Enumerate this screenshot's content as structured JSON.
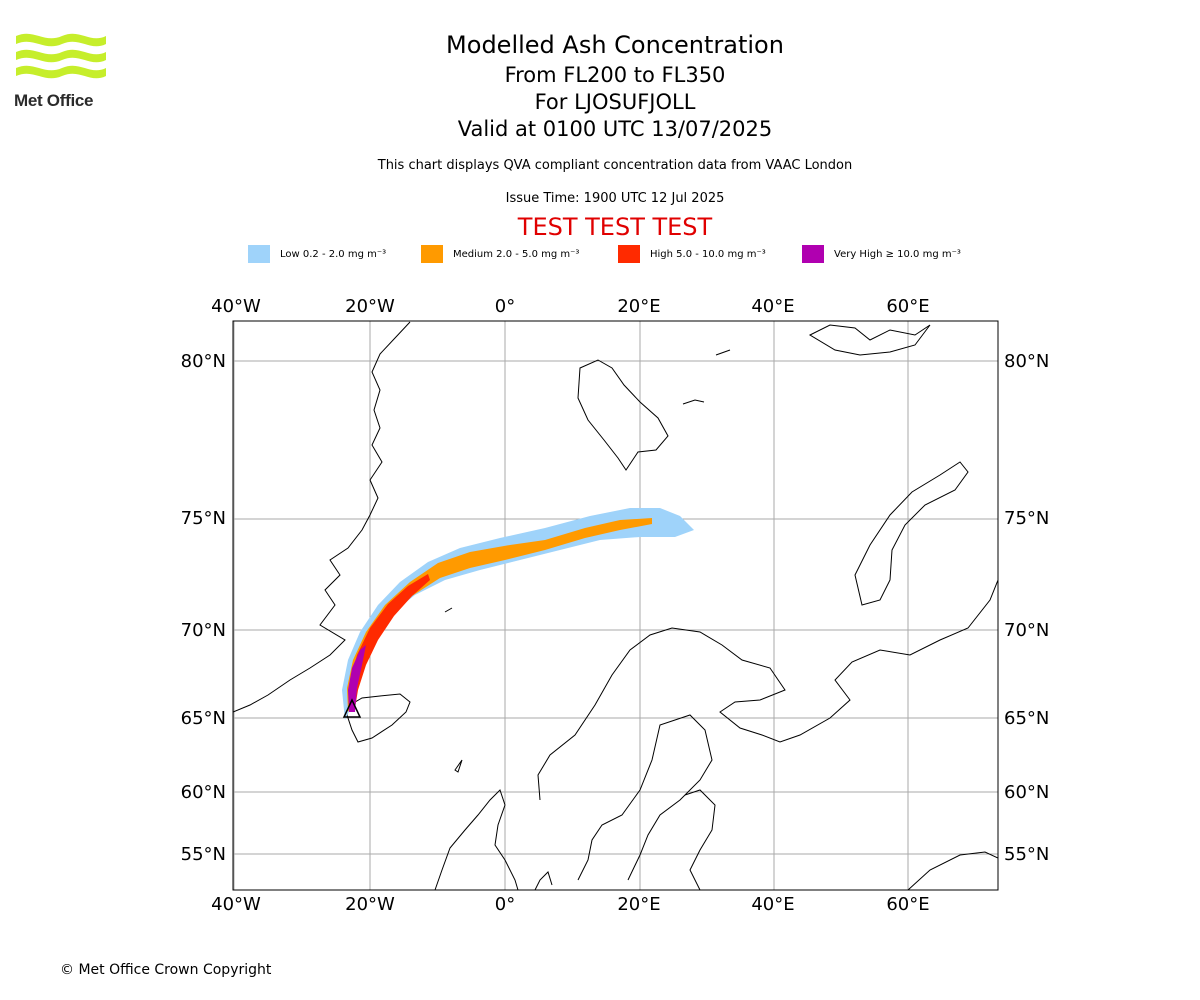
{
  "header": {
    "logo_text": "Met Office",
    "title": "Modelled Ash Concentration",
    "flight_levels": "From FL200 to FL350",
    "volcano": "For LJOSUFJOLL",
    "valid_time": "Valid at 0100 UTC 13/07/2025",
    "description": "This chart displays QVA compliant concentration data from VAAC London",
    "issue_time": "Issue Time: 1900 UTC 12 Jul 2025",
    "test_banner": "TEST TEST TEST"
  },
  "legend": [
    {
      "label": "Low 0.2 - 2.0 mg m⁻³",
      "color": "#9fd3fa"
    },
    {
      "label": "Medium 2.0 - 5.0 mg m⁻³",
      "color": "#ff9a00"
    },
    {
      "label": "High 5.0 - 10.0 mg m⁻³",
      "color": "#ff2a00"
    },
    {
      "label": "Very High ≥ 10.0 mg m⁻³",
      "color": "#b000b0"
    }
  ],
  "map": {
    "lon_ticks": [
      "40°W",
      "20°W",
      "0°",
      "20°E",
      "40°E",
      "60°E"
    ],
    "lat_ticks": [
      "80°N",
      "75°N",
      "70°N",
      "65°N",
      "60°N",
      "55°N"
    ],
    "gridlines": true,
    "volcano_marker": "triangle-icon"
  },
  "footer": {
    "copyright": "© Met Office Crown Copyright"
  }
}
